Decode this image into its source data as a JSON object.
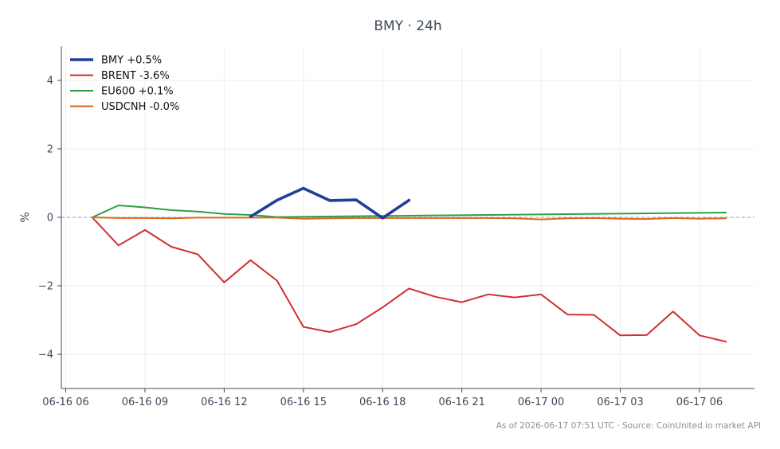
{
  "chart_data": {
    "type": "line",
    "title": "BMY · 24h",
    "xlabel": "",
    "ylabel": "%",
    "ylim": [
      -5,
      5
    ],
    "yticks": [
      4,
      2,
      0,
      -2,
      -4
    ],
    "ytick_labels": [
      "4",
      "2",
      "0",
      "−2",
      "−4"
    ],
    "xlim": [
      "2026-06-16 05:50",
      "2026-06-17 08:05"
    ],
    "xticks": [
      "2026-06-16 06:00",
      "2026-06-16 09:00",
      "2026-06-16 12:00",
      "2026-06-16 15:00",
      "2026-06-16 18:00",
      "2026-06-16 21:00",
      "2026-06-17 00:00",
      "2026-06-17 03:00",
      "2026-06-17 06:00"
    ],
    "xtick_labels": [
      "06-16 06",
      "06-16 09",
      "06-16 12",
      "06-16 15",
      "06-16 18",
      "06-16 21",
      "06-17 00",
      "06-17 03",
      "06-17 06"
    ],
    "grid": true,
    "zero_line": true,
    "legend_position": "top-left",
    "series": [
      {
        "name": "BMY +0.5%",
        "color": "#1f3f99",
        "x": [
          "2026-06-16 13:00",
          "2026-06-16 14:00",
          "2026-06-16 15:00",
          "2026-06-16 16:00",
          "2026-06-16 17:00",
          "2026-06-16 18:00",
          "2026-06-16 19:00"
        ],
        "values": [
          0.02,
          0.5,
          0.85,
          0.49,
          0.51,
          -0.02,
          0.5
        ]
      },
      {
        "name": "BRENT -3.6%",
        "color": "#cf3030",
        "x": [
          "2026-06-16 07:00",
          "2026-06-16 08:00",
          "2026-06-16 09:00",
          "2026-06-16 10:00",
          "2026-06-16 11:00",
          "2026-06-16 12:00",
          "2026-06-16 13:00",
          "2026-06-16 14:00",
          "2026-06-16 15:00",
          "2026-06-16 16:00",
          "2026-06-16 17:00",
          "2026-06-16 18:00",
          "2026-06-16 19:00",
          "2026-06-16 20:00",
          "2026-06-16 21:00",
          "2026-06-16 22:00",
          "2026-06-16 23:00",
          "2026-06-17 00:00",
          "2026-06-17 01:00",
          "2026-06-17 02:00",
          "2026-06-17 03:00",
          "2026-06-17 04:00",
          "2026-06-17 05:00",
          "2026-06-17 06:00",
          "2026-06-17 07:00"
        ],
        "values": [
          0.0,
          -0.82,
          -0.37,
          -0.86,
          -1.08,
          -1.9,
          -1.25,
          -1.85,
          -3.2,
          -3.35,
          -3.12,
          -2.63,
          -2.08,
          -2.32,
          -2.48,
          -2.25,
          -2.34,
          -2.25,
          -2.84,
          -2.85,
          -3.45,
          -3.44,
          -2.75,
          -3.45,
          -3.63
        ]
      },
      {
        "name": "EU600 +0.1%",
        "color": "#2ca048",
        "x": [
          "2026-06-16 07:00",
          "2026-06-16 08:00",
          "2026-06-16 09:00",
          "2026-06-16 10:00",
          "2026-06-16 11:00",
          "2026-06-16 12:00",
          "2026-06-16 13:00",
          "2026-06-16 14:00",
          "2026-06-16 18:00",
          "2026-06-17 07:00"
        ],
        "values": [
          0.0,
          0.35,
          0.29,
          0.21,
          0.17,
          0.1,
          0.07,
          0.01,
          0.04,
          0.14
        ]
      },
      {
        "name": "USDCNH -0.0%",
        "color": "#e0661f",
        "x": [
          "2026-06-16 07:00",
          "2026-06-16 08:00",
          "2026-06-16 09:00",
          "2026-06-16 10:00",
          "2026-06-16 11:00",
          "2026-06-16 12:00",
          "2026-06-16 13:00",
          "2026-06-16 14:00",
          "2026-06-16 15:00",
          "2026-06-16 16:00",
          "2026-06-16 17:00",
          "2026-06-16 18:00",
          "2026-06-16 19:00",
          "2026-06-16 20:00",
          "2026-06-16 21:00",
          "2026-06-16 22:00",
          "2026-06-16 23:00",
          "2026-06-17 00:00",
          "2026-06-17 01:00",
          "2026-06-17 02:00",
          "2026-06-17 03:00",
          "2026-06-17 04:00",
          "2026-06-17 05:00",
          "2026-06-17 06:00",
          "2026-06-17 07:00"
        ],
        "values": [
          0.0,
          -0.02,
          -0.02,
          -0.03,
          -0.01,
          -0.01,
          -0.01,
          -0.01,
          -0.04,
          -0.03,
          -0.02,
          -0.02,
          -0.02,
          -0.02,
          -0.02,
          -0.02,
          -0.03,
          -0.06,
          -0.03,
          -0.02,
          -0.04,
          -0.05,
          -0.02,
          -0.04,
          -0.03
        ]
      }
    ],
    "footer": "As of 2026-06-17 07:51 UTC · Source: CoinUnited.io market API"
  }
}
